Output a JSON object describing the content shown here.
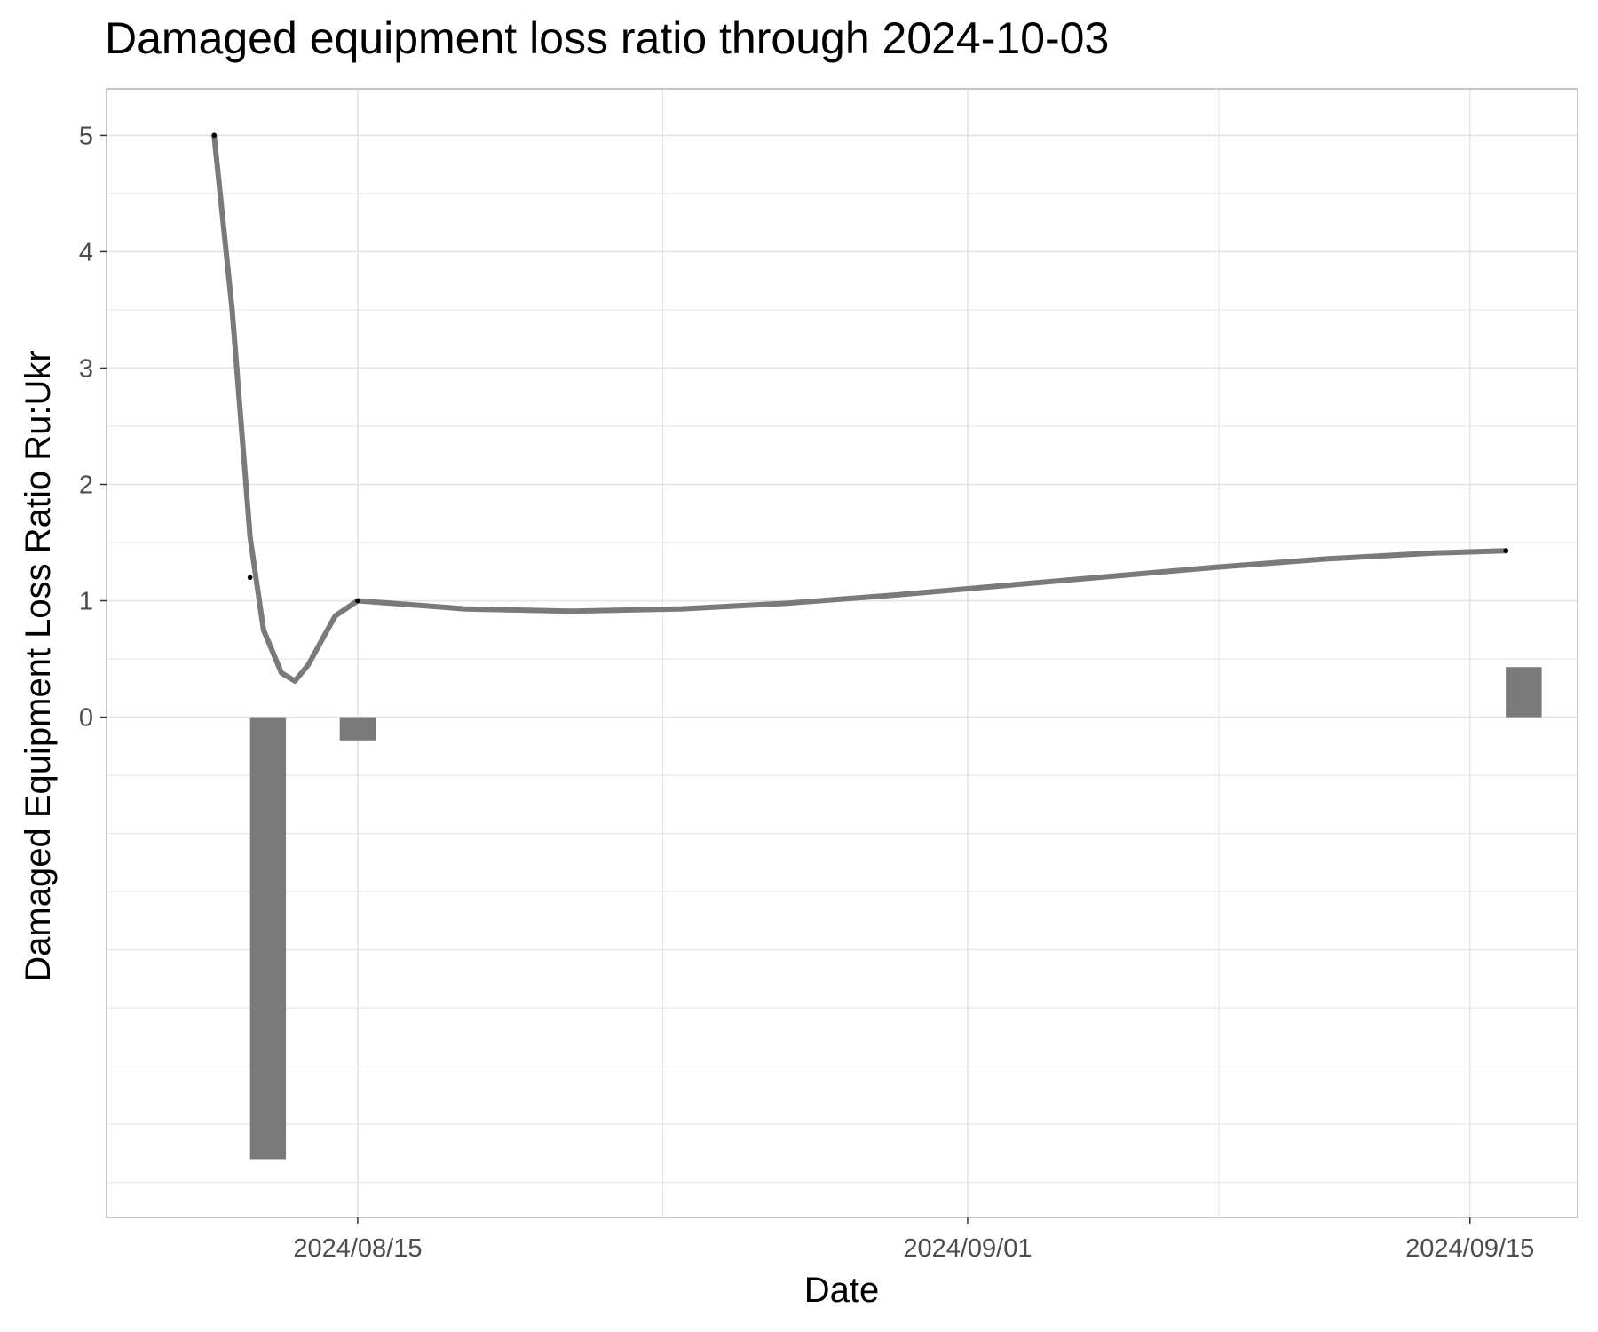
{
  "chart_data": {
    "type": "line",
    "title": "Damaged equipment loss ratio through 2024-10-03",
    "xlabel": "Date",
    "ylabel": "Damaged Equipment Loss Ratio Ru:Ukr",
    "x_axis": {
      "type": "date",
      "range": [
        "2024-08-08",
        "2024-09-18"
      ],
      "ticks": [
        {
          "date": "2024-08-15",
          "label": "2024/08/15"
        },
        {
          "date": "2024-09-01",
          "label": "2024/09/01"
        },
        {
          "date": "2024-09-15",
          "label": "2024/09/15"
        }
      ]
    },
    "ylim": [
      -4.3,
      5.4
    ],
    "y_ticks": [
      0,
      1,
      2,
      3,
      4,
      5
    ],
    "grid": true,
    "series": [
      {
        "kind": "smoothed-line",
        "points": [
          {
            "x": "2024-08-11",
            "y": 5.0
          },
          {
            "x": "2024-08-11T12:00",
            "y": 3.5
          },
          {
            "x": "2024-08-12",
            "y": 1.55
          },
          {
            "x": "2024-08-12T09:00",
            "y": 0.75
          },
          {
            "x": "2024-08-12T21:00",
            "y": 0.38
          },
          {
            "x": "2024-08-13T06:00",
            "y": 0.31
          },
          {
            "x": "2024-08-13T15:00",
            "y": 0.45
          },
          {
            "x": "2024-08-14T09:00",
            "y": 0.87
          },
          {
            "x": "2024-08-15",
            "y": 1.0
          },
          {
            "x": "2024-08-18",
            "y": 0.93
          },
          {
            "x": "2024-08-21",
            "y": 0.91
          },
          {
            "x": "2024-08-24",
            "y": 0.93
          },
          {
            "x": "2024-08-27",
            "y": 0.98
          },
          {
            "x": "2024-08-30",
            "y": 1.05
          },
          {
            "x": "2024-09-02",
            "y": 1.13
          },
          {
            "x": "2024-09-05",
            "y": 1.21
          },
          {
            "x": "2024-09-08",
            "y": 1.29
          },
          {
            "x": "2024-09-11",
            "y": 1.36
          },
          {
            "x": "2024-09-14",
            "y": 1.41
          },
          {
            "x": "2024-09-16",
            "y": 1.43
          }
        ]
      },
      {
        "kind": "points",
        "points": [
          {
            "x": "2024-08-11",
            "y": 5.0
          },
          {
            "x": "2024-08-12",
            "y": 1.2
          },
          {
            "x": "2024-08-15",
            "y": 1.0
          },
          {
            "x": "2024-09-16",
            "y": 1.43
          }
        ]
      },
      {
        "kind": "bars",
        "points": [
          {
            "x": "2024-08-12T12:00",
            "y": -3.8
          },
          {
            "x": "2024-08-15",
            "y": -0.2
          },
          {
            "x": "2024-09-16T12:00",
            "y": 0.43
          }
        ]
      }
    ],
    "colors": {
      "line": "#7a7a7a",
      "bar": "#7a7a7a",
      "point": "#000000",
      "grid": "#e3e3e3",
      "panel_border": "#b3b3b3"
    }
  }
}
